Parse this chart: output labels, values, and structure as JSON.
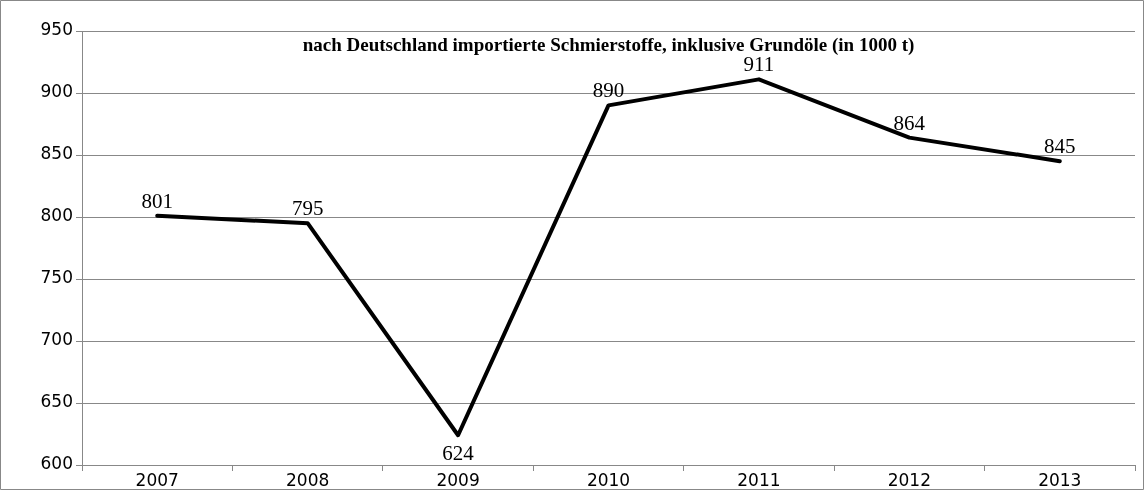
{
  "chart_data": {
    "type": "line",
    "title": "nach Deutschland importierte Schmierstoffe, inklusive Grundöle (in 1000 t)",
    "categories": [
      "2007",
      "2008",
      "2009",
      "2010",
      "2011",
      "2012",
      "2013"
    ],
    "values": [
      801,
      795,
      624,
      890,
      911,
      864,
      845
    ],
    "color": "#000000",
    "ylim": [
      600,
      950
    ],
    "yticks": [
      600,
      650,
      700,
      750,
      800,
      850,
      900,
      950
    ],
    "grid": "y",
    "data_labels": true
  }
}
